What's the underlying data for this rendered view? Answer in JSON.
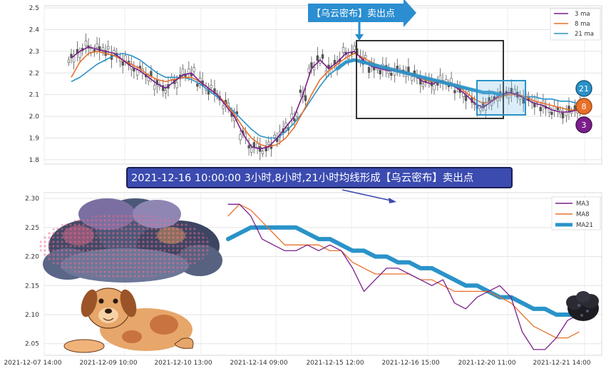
{
  "chart_data": [
    {
      "type": "line",
      "subtype": "candlestick-with-moving-averages",
      "title": "",
      "ylim": [
        1.78,
        2.51
      ],
      "y_ticks": [
        "1.8",
        "1.9",
        "2.0",
        "2.1",
        "2.2",
        "2.3",
        "2.4",
        "2.5"
      ],
      "grid": true,
      "legend_position": "top-right",
      "annotation_top": "【乌云密布】卖出点",
      "badges": [
        "21",
        "8",
        "3"
      ],
      "colors": {
        "ma3": "#7b1f8c",
        "ma8": "#e8702a",
        "ma21": "#2a93c9",
        "candle": "#555555"
      },
      "series": [
        {
          "name": "3 ma",
          "values": [
            2.27,
            2.3,
            2.32,
            2.31,
            2.3,
            2.29,
            2.26,
            2.23,
            2.21,
            2.18,
            2.15,
            2.13,
            2.16,
            2.19,
            2.2,
            2.16,
            2.13,
            2.1,
            2.05,
            2.0,
            1.92,
            1.86,
            1.85,
            1.86,
            1.9,
            1.95,
            2.0,
            2.1,
            2.22,
            2.26,
            2.22,
            2.25,
            2.29,
            2.3,
            2.26,
            2.23,
            2.22,
            2.21,
            2.21,
            2.2,
            2.19,
            2.16,
            2.15,
            2.16,
            2.15,
            2.13,
            2.1,
            2.06,
            2.04,
            2.07,
            2.1,
            2.11,
            2.1,
            2.08,
            2.06,
            2.05,
            2.03,
            2.02,
            2.02,
            2.03
          ]
        },
        {
          "name": "8 ma",
          "values": [
            2.18,
            2.25,
            2.29,
            2.3,
            2.29,
            2.28,
            2.26,
            2.24,
            2.22,
            2.19,
            2.17,
            2.16,
            2.17,
            2.18,
            2.18,
            2.16,
            2.13,
            2.1,
            2.06,
            2.01,
            1.95,
            1.9,
            1.87,
            1.86,
            1.87,
            1.9,
            1.95,
            2.02,
            2.1,
            2.17,
            2.21,
            2.24,
            2.27,
            2.29,
            2.27,
            2.25,
            2.23,
            2.22,
            2.21,
            2.2,
            2.19,
            2.17,
            2.16,
            2.16,
            2.15,
            2.14,
            2.11,
            2.08,
            2.06,
            2.07,
            2.09,
            2.1,
            2.1,
            2.09,
            2.07,
            2.06,
            2.05,
            2.04,
            2.03,
            2.03
          ]
        },
        {
          "name": "21 ma",
          "values": [
            2.16,
            2.18,
            2.21,
            2.24,
            2.26,
            2.28,
            2.29,
            2.28,
            2.26,
            2.23,
            2.2,
            2.18,
            2.18,
            2.18,
            2.17,
            2.15,
            2.12,
            2.09,
            2.06,
            2.02,
            1.98,
            1.94,
            1.91,
            1.9,
            1.9,
            1.93,
            1.97,
            2.02,
            2.08,
            2.14,
            2.19,
            2.22,
            2.25,
            2.26,
            2.25,
            2.24,
            2.23,
            2.22,
            2.21,
            2.2,
            2.19,
            2.18,
            2.17,
            2.16,
            2.15,
            2.14,
            2.13,
            2.12,
            2.11,
            2.11,
            2.1,
            2.1,
            2.1,
            2.09,
            2.09,
            2.08,
            2.08,
            2.07,
            2.07,
            2.06
          ]
        }
      ]
    },
    {
      "type": "line",
      "title": "",
      "xlabel": "",
      "ylabel": "",
      "ylim": [
        2.03,
        2.31
      ],
      "y_ticks": [
        "2.05",
        "2.10",
        "2.15",
        "2.20",
        "2.25",
        "2.30"
      ],
      "x_ticks": [
        "2021-12-07 14:00",
        "2021-12-09 10:00",
        "2021-12-10 13:00",
        "2021-12-14 09:00",
        "2021-12-15 12:00",
        "2021-12-16 15:00",
        "2021-12-20 11:00",
        "2021-12-21 14:00"
      ],
      "grid": true,
      "legend_position": "top-right",
      "annotation_center": "2021-12-16 10:00:00 3小时,8小时,21小时均线形成【乌云密布】卖出点",
      "colors": {
        "MA3": "#7b1f8c",
        "MA8": "#e8702a",
        "MA21": "#2a93c9"
      },
      "series": [
        {
          "name": "MA3",
          "values": [
            2.29,
            2.29,
            2.27,
            2.23,
            2.22,
            2.21,
            2.21,
            2.22,
            2.21,
            2.22,
            2.21,
            2.18,
            2.14,
            2.16,
            2.18,
            2.18,
            2.17,
            2.16,
            2.15,
            2.16,
            2.12,
            2.11,
            2.13,
            2.14,
            2.15,
            2.13,
            2.07,
            2.04,
            2.04,
            2.06,
            2.09,
            2.1
          ]
        },
        {
          "name": "MA8",
          "values": [
            2.27,
            2.29,
            2.28,
            2.26,
            2.24,
            2.22,
            2.22,
            2.22,
            2.22,
            2.21,
            2.21,
            2.19,
            2.18,
            2.17,
            2.17,
            2.17,
            2.17,
            2.16,
            2.16,
            2.15,
            2.14,
            2.14,
            2.14,
            2.14,
            2.13,
            2.12,
            2.1,
            2.08,
            2.07,
            2.06,
            2.06,
            2.07
          ]
        },
        {
          "name": "MA21",
          "values": [
            2.23,
            2.24,
            2.25,
            2.25,
            2.25,
            2.25,
            2.25,
            2.24,
            2.23,
            2.23,
            2.22,
            2.21,
            2.21,
            2.2,
            2.2,
            2.19,
            2.19,
            2.18,
            2.18,
            2.17,
            2.16,
            2.15,
            2.15,
            2.14,
            2.13,
            2.13,
            2.12,
            2.11,
            2.11,
            2.1,
            2.1,
            2.1
          ]
        }
      ]
    }
  ]
}
